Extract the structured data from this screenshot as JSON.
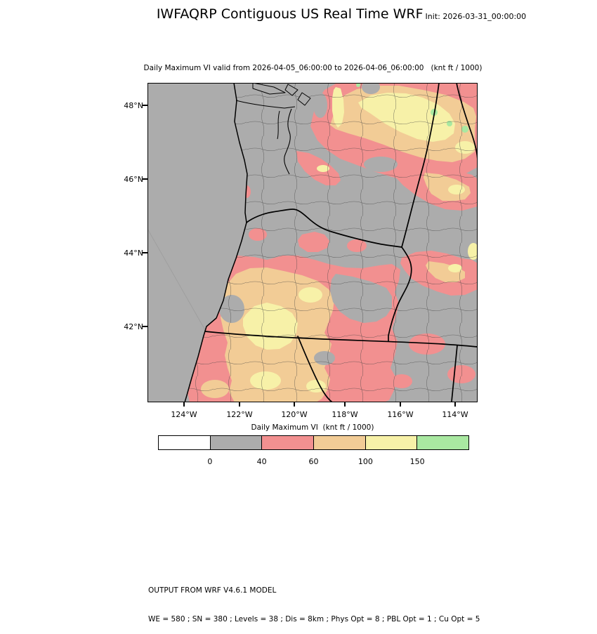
{
  "header": {
    "title": "IWFAQRP Contiguous US Real Time WRF",
    "init_label": "Init: 2026-03-31_00:00:00"
  },
  "plot": {
    "subtitle": "Daily Maximum VI valid from 2026-04-05_06:00:00 to 2026-04-06_06:00:00   (knt ft / 1000)"
  },
  "axes": {
    "y_ticks": [
      "48°N",
      "46°N",
      "44°N",
      "42°N"
    ],
    "x_ticks": [
      "124°W",
      "122°W",
      "120°W",
      "118°W",
      "116°W",
      "114°W"
    ]
  },
  "colorbar": {
    "title": "Daily Maximum VI  (knt ft / 1000)",
    "tick_labels": [
      "0",
      "40",
      "60",
      "100",
      "150"
    ],
    "segments": [
      "#FFFFFF",
      "#ACACAC",
      "#F29090",
      "#F2CC96",
      "#F7F1A8",
      "#A9E8A1"
    ]
  },
  "footer": {
    "line1": "OUTPUT FROM WRF V4.6.1 MODEL",
    "line2": "WE = 580 ; SN = 380 ; Levels = 38 ; Dis = 8km ; Phys Opt = 8 ; PBL Opt = 1 ; Cu Opt = 5"
  },
  "map_colors": {
    "background_gray": "#ACACAC",
    "vi_below_0": "#FFFFFF",
    "vi_0_40": "#ACACAC",
    "vi_40_60": "#F29090",
    "vi_60_100": "#F2CC96",
    "vi_100_150": "#F7F1A8",
    "vi_150_plus": "#A9E8A1",
    "state_border": "#000000",
    "county_line": "#3F3F3F"
  },
  "chart_data": {
    "type": "heatmap",
    "title": "Daily Maximum VI valid from 2026-04-05_06:00:00 to 2026-04-06_06:00:00",
    "units": "knt ft / 1000",
    "colorbar_label": "Daily Maximum VI  (knt ft / 1000)",
    "levels": [
      0,
      40,
      60,
      100,
      150
    ],
    "level_colors": [
      "#FFFFFF",
      "#ACACAC",
      "#F29090",
      "#F2CC96",
      "#F7F1A8",
      "#A9E8A1"
    ],
    "x_ticks": [
      "124°W",
      "122°W",
      "120°W",
      "118°W",
      "116°W",
      "114°W"
    ],
    "y_ticks": [
      "48°N",
      "46°N",
      "44°N",
      "42°N"
    ],
    "legend_position": "bottom",
    "grid": false,
    "map_region": "Pacific Northwest: Washington, Oregon, Idaho, northern California/Nevada",
    "region_readings": [
      {
        "area": "eastern Washington and northern Idaho panhandle",
        "vi_knt_ft_1000": "60-150, small spots above 150 (green)"
      },
      {
        "area": "western Washington / Puget Sound / north-central Oregon",
        "vi_knt_ft_1000": "below 40 (gray)"
      },
      {
        "area": "south-central and southwestern Oregon into northern California/Nevada",
        "vi_knt_ft_1000": "40-150 (pink/tan with yellow cores)"
      },
      {
        "area": "east-central Oregon and far southeast of domain",
        "vi_knt_ft_1000": "below 40 (gray) with scattered 40-100 patches"
      }
    ]
  }
}
